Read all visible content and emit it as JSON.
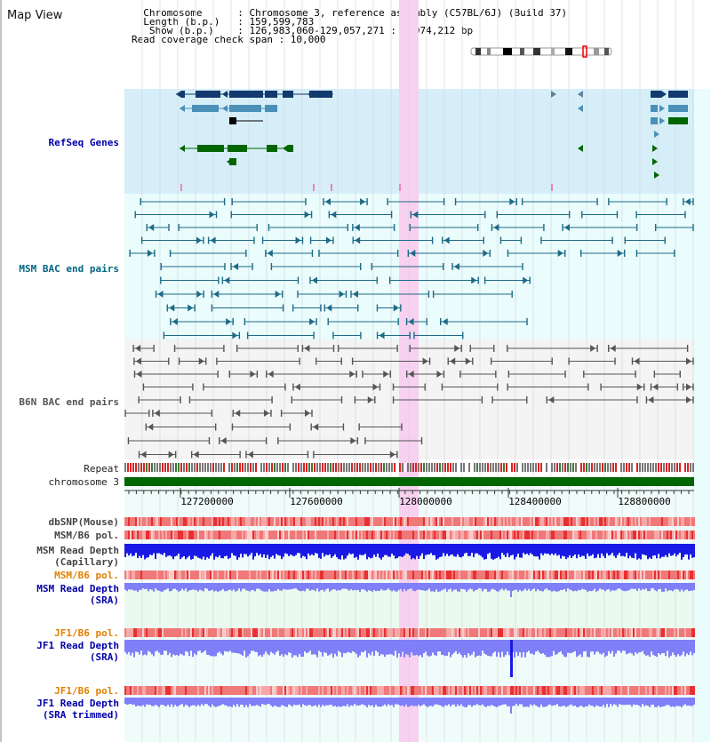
{
  "header": {
    "title": "Map View",
    "info_lines": [
      "  Chromosome      : Chromosome 3, reference assembly (C57BL/6J) (Build 37)",
      "  Length (b.p.)   : 159,599,783",
      "   Show (b.p.)    : 126,983,060-129,057,271 : 2,074,212 bp",
      "Read coverage check span : 10,000"
    ]
  },
  "tracks": {
    "refseq": "RefSeq Genes",
    "msm_bac": "MSM BAC end pairs",
    "b6n_bac": "B6N BAC end pairs",
    "repeat": "Repeat",
    "chromosome": "chromosome 3",
    "dbsnp": "dbSNP(Mouse)",
    "msm_pol1": "MSM/B6 pol.",
    "msm_depth_cap_1": "MSM Read Depth",
    "msm_depth_cap_2": "(Capillary)",
    "msm_pol2": "MSM/B6 pol.",
    "msm_depth_sra_1": "MSM Read Depth",
    "msm_depth_sra_2": "(SRA)",
    "jf1_pol1": "JF1/B6 pol.",
    "jf1_depth_1": "JF1 Read Depth",
    "jf1_depth_2": "(SRA)",
    "jf1_pol2": "JF1/B6 pol.",
    "jf1_trim_1": "JF1 Read Depth",
    "jf1_trim_2": "(SRA trimmed)"
  },
  "axis": {
    "ticks": [
      "127200000",
      "127600000",
      "128000000",
      "128400000",
      "128800000"
    ]
  },
  "colors": {
    "refseq_bg": "#d6eef8",
    "msm_bg": "#eafcfc",
    "b6n_bg": "#f4f4f4",
    "highlight": "#f8d0f0",
    "chromosome_bar": "#006600",
    "gene_navy": "#123a6e",
    "gene_blue": "#4a90b8",
    "gene_green": "#006600",
    "bac_teal": "#1d6a86",
    "bac_gray": "#555555",
    "snp_red": "#e83030",
    "depth_blue": "#1a1ae6",
    "depth_light": "#7f7ff8"
  }
}
